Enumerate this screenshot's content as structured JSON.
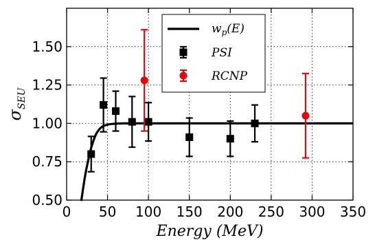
{
  "chart_data": {
    "type": "scatter",
    "xlabel": "Energy (MeV)",
    "ylabel_main": "σ",
    "ylabel_sub": "SEU",
    "xlim": [
      0,
      350
    ],
    "ylim": [
      0.5,
      1.75
    ],
    "xticks": [
      0,
      50,
      100,
      150,
      200,
      250,
      300,
      350
    ],
    "yticks": [
      0.5,
      0.75,
      1.0,
      1.25,
      1.5
    ],
    "xtick_labels": [
      "0",
      "50",
      "100",
      "150",
      "200",
      "250",
      "300",
      "350"
    ],
    "ytick_labels": [
      "0.50",
      "0.75",
      "1.00",
      "1.25",
      "1.50"
    ],
    "grid": true,
    "legend_position": "top-right",
    "colors": {
      "psi": "#000000",
      "rcnp": "#e8000b",
      "fit": "#000000"
    },
    "fit": {
      "name": "w_p(E)",
      "label_main": "w",
      "label_sub": "p",
      "label_rest": "(E)",
      "x": [
        18,
        20,
        22,
        24,
        26,
        28,
        30,
        32,
        34,
        36,
        38,
        40,
        42,
        44,
        46,
        48,
        50,
        52,
        55,
        60,
        65,
        70,
        80,
        100,
        150,
        200,
        250,
        300,
        350
      ],
      "y": [
        0.495,
        0.57,
        0.64,
        0.7,
        0.75,
        0.8,
        0.84,
        0.875,
        0.905,
        0.93,
        0.948,
        0.962,
        0.972,
        0.98,
        0.985,
        0.989,
        0.992,
        0.994,
        0.996,
        0.998,
        0.999,
        1.0,
        1.0,
        1.0,
        1.0,
        1.0,
        1.0,
        1.0,
        1.0
      ]
    },
    "series": [
      {
        "name": "PSI",
        "marker": "square",
        "x": [
          30,
          45,
          60,
          80,
          100,
          150,
          200,
          230
        ],
        "y": [
          0.8,
          1.12,
          1.08,
          1.01,
          1.01,
          0.91,
          0.9,
          1.0
        ],
        "yerr": [
          0.115,
          0.175,
          0.13,
          0.165,
          0.125,
          0.125,
          0.115,
          0.12
        ]
      },
      {
        "name": "RCNP",
        "marker": "circle",
        "x": [
          95,
          292
        ],
        "y": [
          1.28,
          1.05
        ],
        "yerr": [
          0.33,
          0.275
        ]
      }
    ]
  }
}
